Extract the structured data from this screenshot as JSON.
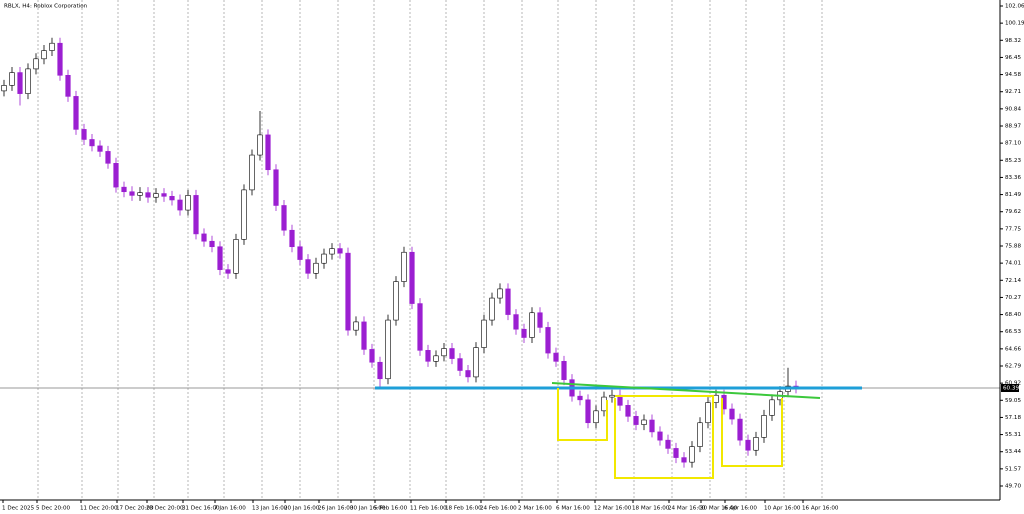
{
  "chart_data": {
    "type": "candlestick",
    "title": "RBLX, H4: Roblox Corporation",
    "up_color": "#ffffff",
    "down_color": "#9b1fd1",
    "x_labels": [
      "1 Dec 2025",
      "5 Dec 20:00",
      "11 Dec 20:00",
      "17 Dec 20:00",
      "23 Dec 20:00",
      "31 Dec 16:00",
      "7 Jan 16:00",
      "13 Jan 16:00",
      "20 Jan 16:00",
      "26 Jan 16:00",
      "30 Jan 16:00",
      "5 Feb 16:00",
      "11 Feb 16:00",
      "18 Feb 16:00",
      "24 Feb 16:00",
      "2 Mar 16:00",
      "6 Mar 16:00",
      "12 Mar 16:00",
      "18 Mar 16:00",
      "24 Mar 16:00",
      "30 Mar 16:00",
      "6 Apr 16:00",
      "10 Apr 16:00",
      "16 Apr 16:00"
    ],
    "open": [
      92.8,
      93.4,
      94.8,
      92.5,
      95.2,
      96.3,
      97.2,
      98.0,
      94.5,
      92.2,
      88.6,
      87.5,
      86.8,
      86.2,
      84.9,
      82.3,
      81.8,
      81.4,
      81.7,
      81.2,
      81.6,
      81.3,
      80.9,
      79.8,
      81.4,
      77.2,
      76.4,
      75.8,
      73.3,
      72.9,
      76.6,
      82.0,
      85.8,
      88.0,
      84.2,
      80.3,
      77.6,
      75.8,
      74.4,
      72.9,
      74.0,
      75.0,
      75.6,
      75.1,
      66.7,
      67.6,
      64.6,
      63.2,
      61.4,
      67.8,
      72.0,
      75.2,
      69.6,
      64.5,
      63.3,
      63.9,
      64.7,
      63.6,
      62.3,
      61.6,
      64.8,
      67.8,
      70.2,
      71.2,
      68.4,
      66.8,
      65.9,
      68.6,
      67.0,
      64.2,
      63.3,
      61.3,
      59.5,
      59.1,
      56.6,
      57.9,
      59.4,
      59.6,
      58.5,
      57.3,
      56.4,
      56.9,
      55.6,
      54.7,
      53.8,
      52.8,
      52.3,
      54.0,
      56.6,
      58.8,
      59.6,
      58.1,
      57.0,
      54.7,
      53.6,
      55.0,
      57.4,
      59.1,
      60.0,
      60.6
    ],
    "high": [
      94.0,
      95.4,
      95.4,
      95.8,
      96.9,
      97.8,
      98.6,
      98.6,
      95.1,
      92.8,
      89.2,
      88.1,
      87.4,
      86.8,
      85.5,
      82.9,
      82.4,
      82.3,
      82.3,
      82.2,
      82.2,
      81.9,
      81.5,
      82.0,
      82.0,
      77.8,
      77.0,
      76.4,
      73.9,
      77.2,
      82.6,
      86.4,
      90.6,
      88.6,
      84.8,
      80.9,
      78.2,
      76.4,
      75.0,
      74.6,
      75.6,
      76.2,
      76.2,
      75.7,
      68.2,
      68.2,
      65.2,
      63.8,
      68.4,
      72.6,
      75.8,
      75.8,
      70.2,
      65.1,
      64.5,
      65.3,
      65.3,
      64.2,
      62.9,
      65.4,
      68.4,
      70.8,
      71.8,
      71.8,
      69.0,
      67.4,
      69.2,
      69.2,
      67.6,
      64.8,
      63.9,
      61.9,
      60.1,
      59.7,
      58.5,
      60.0,
      60.2,
      60.2,
      59.1,
      57.9,
      57.5,
      57.5,
      56.2,
      55.3,
      54.4,
      53.4,
      54.6,
      57.2,
      59.4,
      60.2,
      60.2,
      58.7,
      57.6,
      55.3,
      55.6,
      58.0,
      59.7,
      60.6,
      62.6,
      61.2
    ],
    "low": [
      92.2,
      92.8,
      91.2,
      91.9,
      94.6,
      95.7,
      96.6,
      93.9,
      91.6,
      88.0,
      86.9,
      86.2,
      85.6,
      84.3,
      81.7,
      81.2,
      80.8,
      80.8,
      80.6,
      80.6,
      80.7,
      80.3,
      79.2,
      79.2,
      76.6,
      75.8,
      75.2,
      72.7,
      72.3,
      72.3,
      76.0,
      81.4,
      85.2,
      83.6,
      79.7,
      77.0,
      75.2,
      73.8,
      72.3,
      72.3,
      73.4,
      74.4,
      74.5,
      66.1,
      66.1,
      64.0,
      62.6,
      60.3,
      60.8,
      67.2,
      71.4,
      69.0,
      63.9,
      62.7,
      62.7,
      63.3,
      63.0,
      61.7,
      61.0,
      61.0,
      64.2,
      67.2,
      69.6,
      67.8,
      66.2,
      65.3,
      65.3,
      66.4,
      63.6,
      62.7,
      60.7,
      58.9,
      58.5,
      56.0,
      56.0,
      57.3,
      58.8,
      57.9,
      56.7,
      55.8,
      55.8,
      55.0,
      54.1,
      53.2,
      52.2,
      51.7,
      51.7,
      53.4,
      56.0,
      58.2,
      57.5,
      56.4,
      54.1,
      53.0,
      53.0,
      54.4,
      56.8,
      58.5,
      59.4,
      59.8
    ],
    "close": [
      93.4,
      94.8,
      92.5,
      95.2,
      96.3,
      97.2,
      98.0,
      94.5,
      92.2,
      88.6,
      87.5,
      86.8,
      86.2,
      84.9,
      82.3,
      81.8,
      81.4,
      81.7,
      81.2,
      81.6,
      81.3,
      80.9,
      79.8,
      81.4,
      77.2,
      76.4,
      75.8,
      73.3,
      72.9,
      76.6,
      82.0,
      85.8,
      88.0,
      84.2,
      80.3,
      77.6,
      75.8,
      74.4,
      72.9,
      74.0,
      75.0,
      75.6,
      75.1,
      66.7,
      67.6,
      64.6,
      63.2,
      61.4,
      67.8,
      72.0,
      75.2,
      69.6,
      64.5,
      63.3,
      63.9,
      64.7,
      63.6,
      62.3,
      61.6,
      64.8,
      67.8,
      70.2,
      71.2,
      68.4,
      66.8,
      65.9,
      68.6,
      67.0,
      64.2,
      63.3,
      61.3,
      59.5,
      59.1,
      56.6,
      57.9,
      59.4,
      59.6,
      58.5,
      57.3,
      56.4,
      56.9,
      55.6,
      54.7,
      53.8,
      52.8,
      52.3,
      54.0,
      56.6,
      58.8,
      59.6,
      58.1,
      57.0,
      54.7,
      53.6,
      55.0,
      57.4,
      59.1,
      60.0,
      60.6,
      60.4
    ],
    "last_price": 60.39,
    "ylim": [
      49.7,
      102.06
    ],
    "yticks": [
      102.06,
      100.19,
      98.32,
      96.45,
      94.58,
      92.71,
      90.84,
      88.97,
      {
        "value": 87.1,
        "label": "87.10"
      },
      85.23,
      83.36,
      81.49,
      79.62,
      77.75,
      75.88,
      74.01,
      72.14,
      70.27,
      {
        "value": 68.4,
        "label": "68.40"
      },
      66.53,
      64.66,
      62.79,
      60.92,
      59.05,
      57.18,
      55.31,
      53.44,
      51.57,
      {
        "value": 49.7,
        "label": "49.70"
      }
    ]
  }
}
